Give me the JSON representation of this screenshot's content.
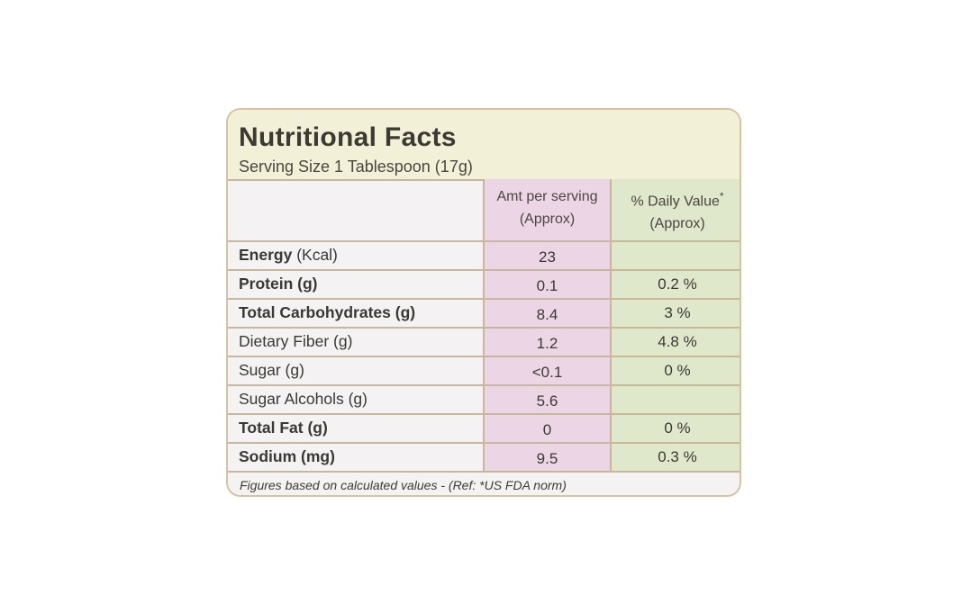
{
  "label": {
    "title": "Nutritional Facts",
    "serving": "Serving Size 1 Tablespoon (17g)",
    "columns": {
      "amt_line1": "Amt per serving",
      "amt_line2": "(Approx)",
      "dv_line1": "% Daily Value",
      "dv_star": "*",
      "dv_line2": "(Approx)"
    },
    "rows": [
      {
        "name_bold": "Energy",
        "name_rest": " (Kcal)",
        "amt": "23",
        "dv": ""
      },
      {
        "name_bold": "Protein (g)",
        "name_rest": "",
        "amt": "0.1",
        "dv": "0.2 %"
      },
      {
        "name_bold": "Total Carbohydrates (g)",
        "name_rest": "",
        "amt": "8.4",
        "dv": "3 %"
      },
      {
        "name_bold": "",
        "name_rest": "Dietary Fiber (g)",
        "amt": "1.2",
        "dv": "4.8 %"
      },
      {
        "name_bold": "",
        "name_rest": "Sugar (g)",
        "amt": "<0.1",
        "dv": "0 %"
      },
      {
        "name_bold": "",
        "name_rest": "Sugar Alcohols (g)",
        "amt": "5.6",
        "dv": ""
      },
      {
        "name_bold": "Total Fat (g)",
        "name_rest": "",
        "amt": "0",
        "dv": "0 %"
      },
      {
        "name_bold": "Sodium (mg)",
        "name_rest": "",
        "amt": "9.5",
        "dv": "0.3 %"
      }
    ],
    "footnote": "Figures based on calculated values - (Ref: *US FDA norm)"
  },
  "colors": {
    "header_bg": "#f2f1d8",
    "amt_column": "#ecd6e6",
    "dv_column": "#dfe8cb",
    "border": "#c9b79b"
  }
}
